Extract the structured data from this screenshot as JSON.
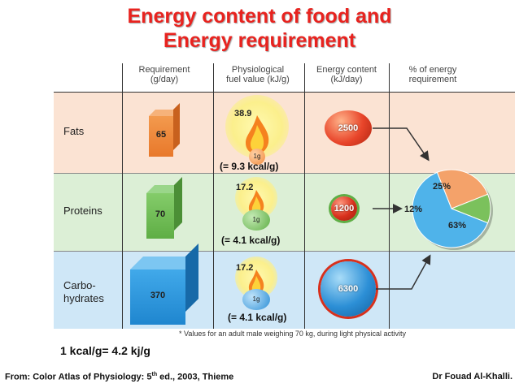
{
  "title": {
    "line1": "Energy content of food and",
    "line2": "Energy requirement"
  },
  "columns": {
    "requirement": "Requirement\n(g/day)",
    "fuel": "Physiological\nfuel value (kJ/g)",
    "energy": "Energy content\n(kJ/day)",
    "percent": "% of energy\nrequirement"
  },
  "rows": [
    {
      "label": "Fats",
      "requirement": "65",
      "fuel_value": "38.9",
      "gram": "1g",
      "kcal": "(= 9.3 kcal/g)",
      "energy": "2500",
      "band_color": "#fbe3d3",
      "cube_color": "#f08c3a"
    },
    {
      "label": "Proteins",
      "requirement": "70",
      "fuel_value": "17.2",
      "gram": "1g",
      "kcal": "(= 4.1 kcal/g)",
      "energy": "1200",
      "band_color": "#dcefd6",
      "cube_color": "#6fbf4f"
    },
    {
      "label": "Carbo-\nhydrates",
      "requirement": "370",
      "fuel_value": "17.2",
      "gram": "1g",
      "kcal": "(= 4.1 kcal/g)",
      "energy": "6300",
      "band_color": "#cfe7f7",
      "cube_color": "#2c9be0"
    }
  ],
  "pie": {
    "slices": [
      {
        "label": "25%",
        "value": 25,
        "color": "#f4a26a"
      },
      {
        "label": "12%",
        "value": 12,
        "color": "#7bc15c"
      },
      {
        "label": "63%",
        "value": 63,
        "color": "#4fb3ea"
      }
    ]
  },
  "footnote": "* Values for an adult male weighing 70 kg, during light physical activity",
  "conversion": "1 kcal/g= 4.2 kj/g",
  "source": {
    "prefix": "From: Color Atlas of Physiology: 5",
    "sup": "th",
    "suffix": " ed., 2003, Thieme"
  },
  "author": "Dr Fouad Al-Khalli."
}
